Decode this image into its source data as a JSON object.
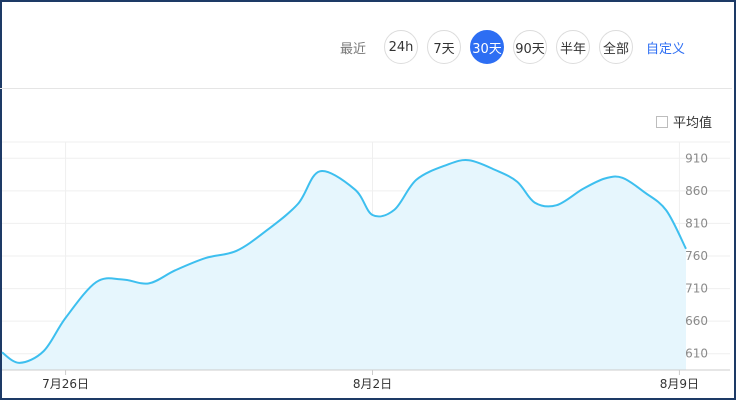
{
  "range_selector": {
    "label": "最近",
    "options": [
      {
        "label": "24h",
        "active": false
      },
      {
        "label": "7天",
        "active": false
      },
      {
        "label": "30天",
        "active": true
      },
      {
        "label": "90天",
        "active": false
      },
      {
        "label": "半年",
        "active": false
      },
      {
        "label": "全部",
        "active": false
      }
    ],
    "custom_label": "自定义"
  },
  "average_toggle": {
    "label": "平均值",
    "checked": false
  },
  "colors": {
    "accent": "#2d6ef3",
    "line": "#3dbfef",
    "area": "#e6f6fd"
  },
  "chart_data": {
    "type": "area",
    "y_ticks": [
      610,
      660,
      710,
      760,
      810,
      860,
      910
    ],
    "y_axis_side": "right",
    "ylim": [
      585,
      935
    ],
    "x_tick_labels": [
      {
        "label": "7月26日",
        "day": 5
      },
      {
        "label": "8月2日",
        "day": 12
      },
      {
        "label": "8月9日",
        "day": 19
      }
    ],
    "xlim": [
      3.55,
      19.15
    ],
    "grid": true,
    "series": [
      {
        "x": [
          3.55,
          3.95,
          4.5,
          5.0,
          5.7,
          6.3,
          6.9,
          7.5,
          8.2,
          8.9,
          9.6,
          10.3,
          10.8,
          11.6,
          12.0,
          12.5,
          13.0,
          13.7,
          14.2,
          14.8,
          15.3,
          15.7,
          16.2,
          16.8,
          17.3,
          17.7,
          18.2,
          18.7,
          19.15
        ],
        "y": [
          612,
          596,
          614,
          665,
          720,
          724,
          718,
          738,
          757,
          768,
          800,
          840,
          890,
          862,
          823,
          831,
          877,
          900,
          907,
          892,
          874,
          842,
          838,
          863,
          879,
          880,
          858,
          830,
          771
        ]
      }
    ]
  }
}
